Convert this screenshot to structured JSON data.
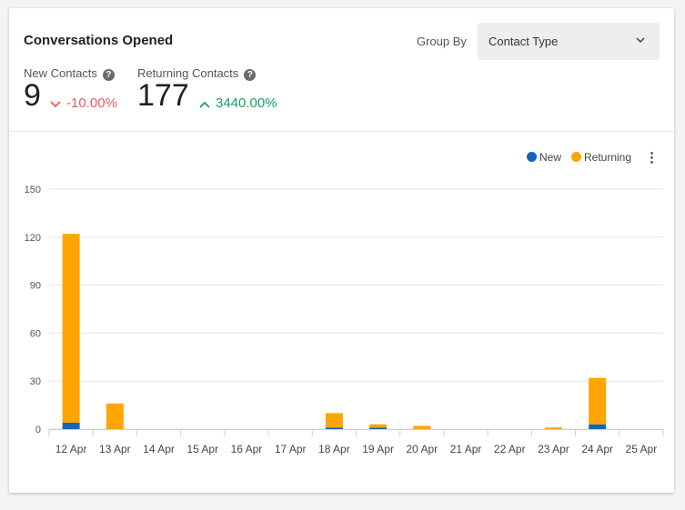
{
  "card": {
    "title": "Conversations Opened",
    "group_by_label": "Group By",
    "group_by_value": "Contact Type"
  },
  "kpis": [
    {
      "label": "New Contacts",
      "value": "9",
      "delta": "-10.00%",
      "direction": "down"
    },
    {
      "label": "Returning Contacts",
      "value": "177",
      "delta": "3440.00%",
      "direction": "up"
    }
  ],
  "legend": [
    {
      "name": "New",
      "color": "#1565c0"
    },
    {
      "name": "Returning",
      "color": "#ffa500"
    }
  ],
  "icons": {
    "help": "help-icon",
    "kebab": "more-vert-icon",
    "chevron": "chevron-down-icon"
  },
  "chart_data": {
    "type": "bar",
    "stacked": true,
    "categories": [
      "12 Apr",
      "13 Apr",
      "14 Apr",
      "15 Apr",
      "16 Apr",
      "17 Apr",
      "18 Apr",
      "19 Apr",
      "20 Apr",
      "21 Apr",
      "22 Apr",
      "23 Apr",
      "24 Apr",
      "25 Apr"
    ],
    "series": [
      {
        "name": "New",
        "color": "#1565c0",
        "values": [
          4,
          0,
          0,
          0,
          0,
          0,
          1,
          1,
          0,
          0,
          0,
          0,
          3,
          0
        ]
      },
      {
        "name": "Returning",
        "color": "#ffa500",
        "values": [
          118,
          16,
          0,
          0,
          0,
          0,
          9,
          2,
          2,
          0,
          0,
          1,
          29,
          0
        ]
      }
    ],
    "yticks": [
      0,
      30,
      60,
      90,
      120,
      150
    ],
    "ylim": [
      0,
      150
    ],
    "grid": true,
    "legend_position": "top-right"
  }
}
